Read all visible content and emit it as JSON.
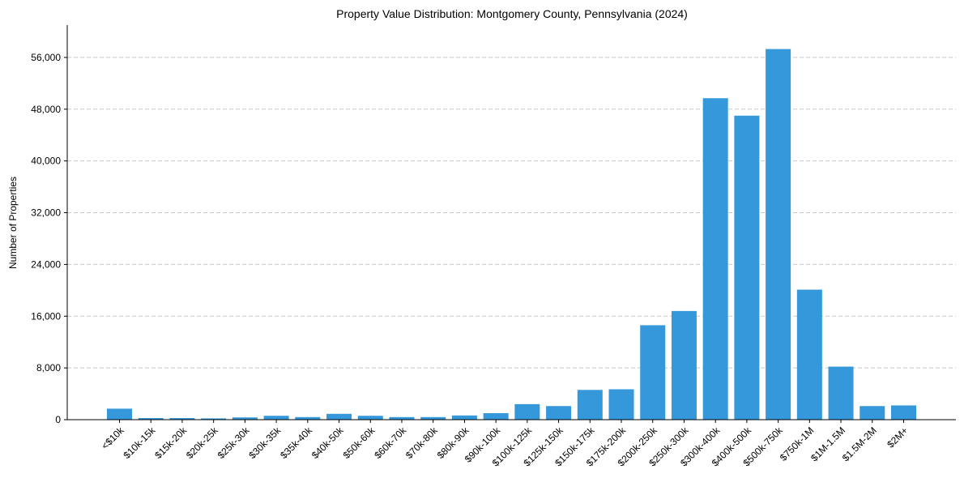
{
  "chart_data": {
    "type": "bar",
    "title": "Property Value Distribution: Montgomery County, Pennsylvania (2024)",
    "xlabel": "",
    "ylabel": "Number of Properties",
    "ylim": [
      0,
      61000
    ],
    "yticks": [
      0,
      8000,
      16000,
      24000,
      32000,
      40000,
      48000,
      56000
    ],
    "ytick_labels": [
      "0",
      "8,000",
      "16,000",
      "24,000",
      "32,000",
      "40,000",
      "48,000",
      "56,000"
    ],
    "grid": "y-dashed",
    "bar_color": "#3498db",
    "categories": [
      "<$10k",
      "$10k-15k",
      "$15k-20k",
      "$20k-25k",
      "$25k-30k",
      "$30k-35k",
      "$35k-40k",
      "$40k-50k",
      "$50k-60k",
      "$60k-70k",
      "$70k-80k",
      "$80k-90k",
      "$90k-100k",
      "$100k-125k",
      "$125k-150k",
      "$150k-175k",
      "$175k-200k",
      "$200k-250k",
      "$250k-300k",
      "$300k-400k",
      "$400k-500k",
      "$500k-750k",
      "$750k-1M",
      "$1M-1.5M",
      "$1.5M-2M",
      "$2M+"
    ],
    "values": [
      1700,
      250,
      250,
      200,
      350,
      600,
      400,
      900,
      600,
      400,
      400,
      650,
      1000,
      2400,
      2100,
      4600,
      4700,
      14600,
      16800,
      49700,
      47000,
      57300,
      20100,
      8200,
      2100,
      2200
    ]
  }
}
